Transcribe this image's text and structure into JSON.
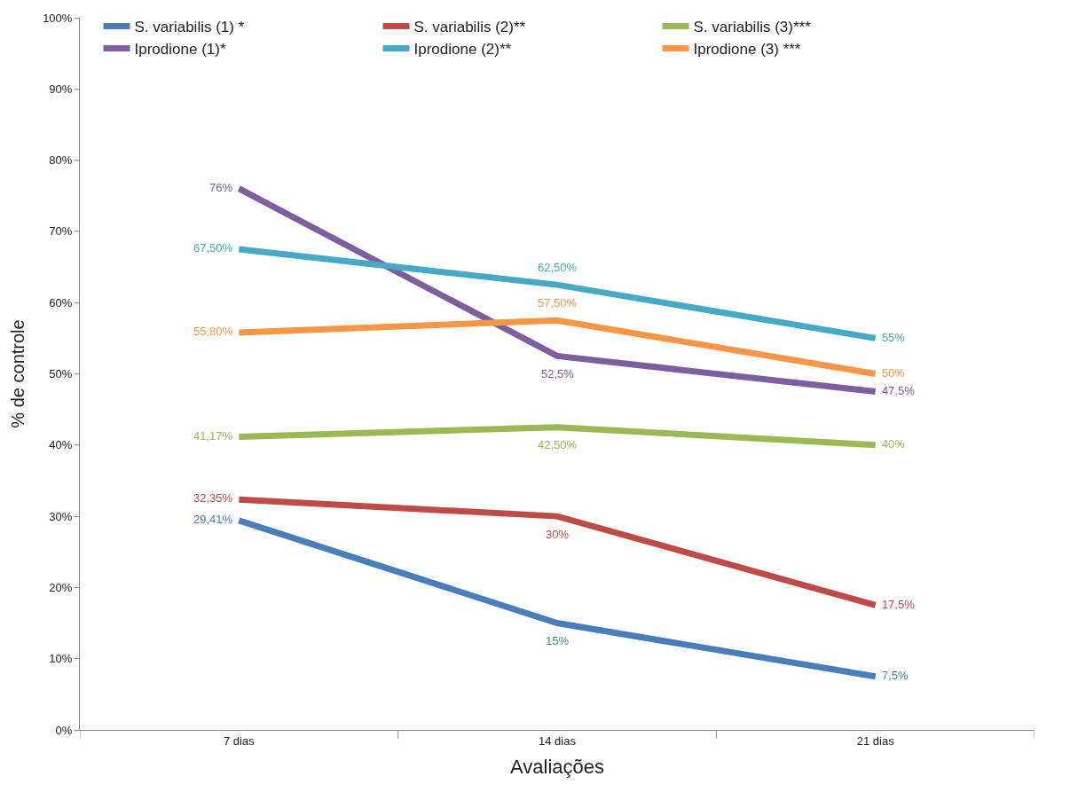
{
  "chart_data": {
    "type": "line",
    "xlabel": "Avaliações",
    "ylabel": "% de controle",
    "categories": [
      "7 dias",
      "14 dias",
      "21 dias"
    ],
    "ylim": [
      0,
      100
    ],
    "yticks": [
      {
        "value": 0,
        "label": "0%"
      },
      {
        "value": 10,
        "label": "10%"
      },
      {
        "value": 20,
        "label": "20%"
      },
      {
        "value": 30,
        "label": "30%"
      },
      {
        "value": 40,
        "label": "40%"
      },
      {
        "value": 50,
        "label": "50%"
      },
      {
        "value": 60,
        "label": "60%"
      },
      {
        "value": 70,
        "label": "70%"
      },
      {
        "value": 80,
        "label": "80%"
      },
      {
        "value": 90,
        "label": "90%"
      },
      {
        "value": 100,
        "label": "100%"
      }
    ],
    "legend": "top",
    "marker": "none",
    "line_style": "solid",
    "series": [
      {
        "name": "S. variabilis (1) *",
        "color": "#4a7ebb",
        "values": [
          29.41,
          15,
          7.5
        ],
        "value_labels": [
          "29,41%",
          "15%",
          "7,5%"
        ]
      },
      {
        "name": "S. variabilis (2)**",
        "color": "#be4b48",
        "values": [
          32.35,
          30,
          17.5
        ],
        "value_labels": [
          "32,35%",
          "30%",
          "17,5%"
        ]
      },
      {
        "name": "S. variabilis (3)***",
        "color": "#98b954",
        "values": [
          41.17,
          42.5,
          40
        ],
        "value_labels": [
          "41,17%",
          "42,50%",
          "40%"
        ]
      },
      {
        "name": "Iprodione (1)*",
        "color": "#7d5fa0",
        "values": [
          76,
          52.5,
          47.5
        ],
        "value_labels": [
          "76%",
          "52,5%",
          "47,5%"
        ]
      },
      {
        "name": "Iprodione (2)**",
        "color": "#46aac5",
        "values": [
          67.5,
          62.5,
          55
        ],
        "value_labels": [
          "67,50%",
          "62,50%",
          "55%"
        ]
      },
      {
        "name": "Iprodione (3) ***",
        "color": "#f79646",
        "values": [
          55.8,
          57.5,
          50
        ],
        "value_labels": [
          "55,80%",
          "57,50%",
          "50%"
        ]
      }
    ]
  }
}
